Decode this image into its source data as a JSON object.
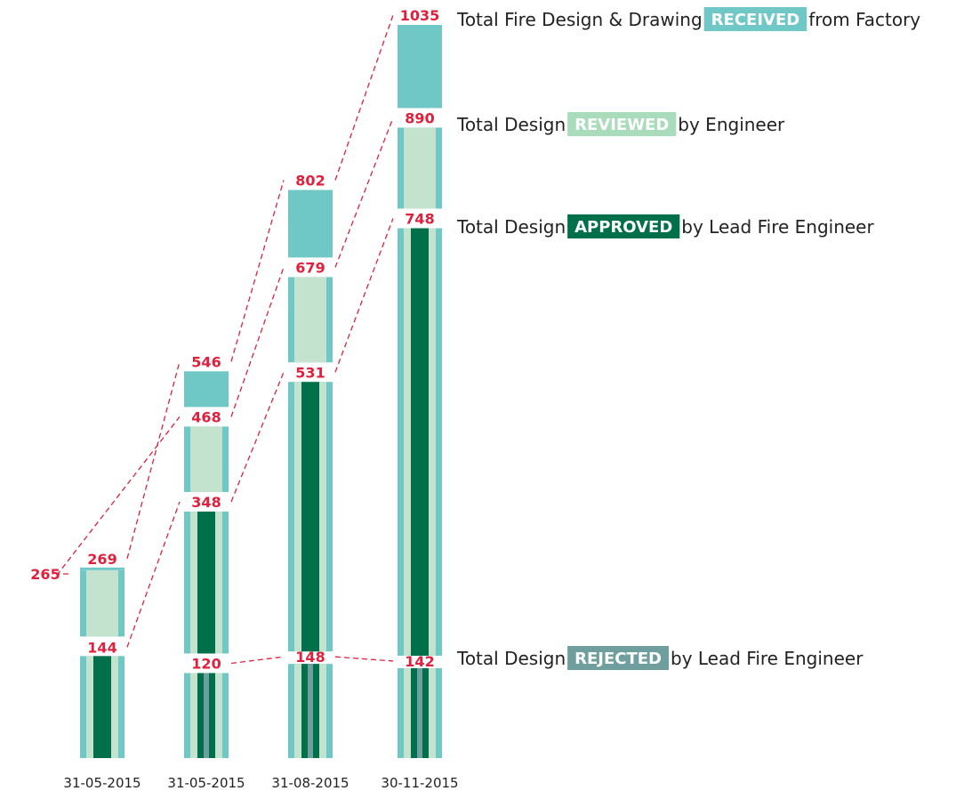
{
  "chart_data": {
    "type": "bar",
    "categories": [
      "31-05-2015",
      "31-05-2015",
      "31-08-2015",
      "30-11-2015"
    ],
    "series": [
      {
        "name": "RECEIVED",
        "values": [
          269,
          546,
          802,
          1035
        ]
      },
      {
        "name": "REVIEWED",
        "values": [
          265,
          468,
          679,
          890
        ]
      },
      {
        "name": "APPROVED",
        "values": [
          144,
          348,
          531,
          748
        ]
      },
      {
        "name": "REJECTED",
        "values": [
          null,
          120,
          148,
          142
        ]
      }
    ],
    "legend": [
      {
        "series": "RECEIVED",
        "prefix": "Total Fire Design & Drawing ",
        "badge": "RECEIVED",
        "suffix": " from Factory",
        "color": "#6fc7c6"
      },
      {
        "series": "REVIEWED",
        "prefix": "Total Design ",
        "badge": "REVIEWED",
        "suffix": " by Engineer",
        "color": "#a9dcbb"
      },
      {
        "series": "APPROVED",
        "prefix": "Total Design ",
        "badge": "APPROVED",
        "suffix": " by Lead Fire Engineer",
        "color": "#00704a"
      },
      {
        "series": "REJECTED",
        "prefix": "Total Design ",
        "badge": "REJECTED",
        "suffix": " by Lead Fire Engineer",
        "color": "#6f9e9e"
      }
    ],
    "colors": {
      "received": "#6fc7c6",
      "reviewed": "#c4e3cf",
      "approved": "#00704a",
      "rejected": "#6f9e9e",
      "label": "#e0203c"
    }
  }
}
